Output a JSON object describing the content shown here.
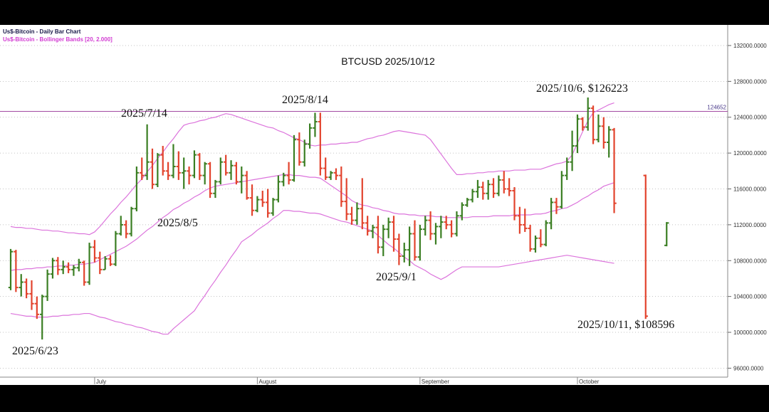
{
  "chart_data": {
    "type": "ohlc",
    "title": "BTCUSD 2025/10/12",
    "legend": [
      "Us$-Bitcoin - Daily Bar Chart",
      "Us$-Bitcoin - Bollinger Bands [20, 2.000]"
    ],
    "legend_colors": [
      "#1a1a4a",
      "#d23cd2"
    ],
    "annotations": [
      "2025/6/23",
      "2025/7/14",
      "2025/8/5",
      "2025/8/14",
      "2025/9/1",
      "2025/10/6, $126223",
      "2025/10/11, $108596"
    ],
    "categories": [
      null,
      null,
      null,
      null,
      null,
      null,
      null,
      null,
      null,
      null,
      null,
      null,
      null,
      null,
      null,
      null,
      "July",
      null,
      null,
      null,
      null,
      null,
      null,
      null,
      null,
      null,
      null,
      null,
      null,
      null,
      null,
      null,
      null,
      null,
      null,
      null,
      null,
      null,
      null,
      null,
      null,
      null,
      null,
      null,
      null,
      null,
      null,
      "August",
      null,
      null,
      null,
      null,
      null,
      null,
      null,
      null,
      null,
      null,
      null,
      null,
      null,
      null,
      null,
      null,
      null,
      null,
      null,
      null,
      null,
      null,
      null,
      null,
      null,
      null,
      null,
      null,
      null,
      null,
      "September",
      null,
      null,
      null,
      null,
      null,
      null,
      null,
      null,
      null,
      null,
      null,
      null,
      null,
      null,
      null,
      null,
      null,
      null,
      null,
      null,
      null,
      null,
      null,
      null,
      null,
      null,
      null,
      null,
      null,
      "October",
      null,
      null,
      null,
      null,
      null,
      null,
      null,
      null,
      null,
      null,
      null,
      null,
      null,
      null,
      null,
      null,
      null
    ],
    "ohlc": {
      "up_color": "#3a7e22",
      "down_color": "#e2432d",
      "open": [
        105000,
        109000,
        105000,
        105600,
        104300,
        103200,
        102000,
        104000,
        106500,
        108000,
        107000,
        107300,
        107000,
        107200,
        107800,
        105600,
        109500,
        108300,
        107000,
        108200,
        107600,
        111000,
        112000,
        111000,
        113800,
        117800,
        117500,
        119000,
        116500,
        119800,
        118000,
        117500,
        118500,
        117800,
        118000,
        117500,
        119800,
        117500,
        118800,
        115500,
        116800,
        119000,
        117800,
        118600,
        116800,
        117500,
        115000,
        113600,
        114800,
        114500,
        113300,
        114800,
        116800,
        117500,
        117000,
        121500,
        119000,
        121000,
        122800,
        123500,
        118300,
        117300,
        117800,
        117500,
        114600,
        113200,
        112500,
        113800,
        112200,
        111300,
        111700,
        109500,
        111500,
        112300,
        110400,
        108500,
        109200,
        111000,
        108400,
        111500,
        112500,
        111000,
        111800,
        112300,
        112000,
        111000,
        113000,
        114200,
        114800,
        115700,
        116200,
        115500,
        116500,
        115500,
        117000,
        116000,
        115800,
        113000,
        112000,
        111600,
        109300,
        110500,
        109800,
        112200,
        114500,
        114000,
        117500,
        119000,
        120800,
        123800,
        122900,
        125000,
        121500,
        123000,
        121200,
        122600,
        null,
        null,
        null,
        null,
        null,
        117500,
        null,
        null,
        null,
        109700
      ],
      "high": [
        109300,
        109200,
        106500,
        106000,
        105800,
        104000,
        104200,
        107000,
        108300,
        108400,
        108000,
        107800,
        107500,
        108200,
        108000,
        110000,
        110300,
        109000,
        108500,
        108600,
        111300,
        113000,
        112500,
        114000,
        118500,
        119500,
        123200,
        120500,
        120000,
        120800,
        119000,
        121000,
        120200,
        119500,
        118500,
        120300,
        120000,
        119000,
        119000,
        117000,
        119500,
        119800,
        119200,
        119000,
        118500,
        118000,
        116500,
        115200,
        115800,
        116000,
        115000,
        117500,
        117800,
        119000,
        122000,
        122300,
        121500,
        123300,
        124500,
        124500,
        119500,
        118000,
        118300,
        118500,
        117200,
        114000,
        114500,
        117200,
        113000,
        112000,
        113000,
        112000,
        112800,
        113000,
        111000,
        110000,
        111800,
        112500,
        112000,
        113000,
        113500,
        112200,
        113000,
        113000,
        112500,
        113500,
        114500,
        115000,
        116000,
        117000,
        116800,
        117000,
        117200,
        117500,
        118000,
        117200,
        116200,
        114000,
        113800,
        112000,
        110800,
        111500,
        112500,
        115000,
        115000,
        118000,
        119500,
        122500,
        124300,
        124000,
        126200,
        125300,
        124300,
        124000,
        123000,
        122800,
        null,
        null,
        null,
        null,
        null,
        117600,
        null,
        null,
        null,
        112300
      ],
      "low": [
        104700,
        104500,
        104000,
        103800,
        102500,
        101500,
        99200,
        103500,
        106000,
        106400,
        106500,
        106600,
        106300,
        106800,
        105200,
        105300,
        107800,
        106500,
        107000,
        107400,
        107400,
        110800,
        110500,
        110700,
        113500,
        117000,
        117000,
        116000,
        116200,
        117500,
        117000,
        117200,
        117000,
        116000,
        116500,
        117200,
        117000,
        116500,
        115000,
        115000,
        116500,
        117500,
        117000,
        116500,
        115500,
        114800,
        113000,
        113400,
        114000,
        112800,
        113000,
        114500,
        116300,
        116500,
        116800,
        118600,
        118500,
        120500,
        121800,
        117500,
        117000,
        117000,
        117000,
        114000,
        112500,
        112000,
        112000,
        111500,
        110800,
        110500,
        108800,
        108500,
        110500,
        109000,
        107500,
        107800,
        107400,
        108000,
        108000,
        110800,
        110300,
        109800,
        110500,
        111500,
        110600,
        110700,
        112500,
        114000,
        114500,
        115000,
        114800,
        114800,
        115000,
        115200,
        115500,
        115200,
        112500,
        111000,
        111200,
        109000,
        108900,
        109500,
        109600,
        111500,
        113200,
        113800,
        117000,
        118000,
        120000,
        122500,
        122500,
        121000,
        121200,
        120500,
        119500,
        113300,
        null,
        null,
        null,
        null,
        null,
        101500,
        null,
        null,
        null,
        109600
      ],
      "close": [
        109000,
        105000,
        105600,
        104300,
        103200,
        102000,
        104000,
        106500,
        108000,
        107000,
        107300,
        107000,
        107200,
        107800,
        105600,
        109500,
        108300,
        107000,
        108200,
        107600,
        111000,
        112000,
        111000,
        113800,
        117800,
        117500,
        119000,
        116500,
        119800,
        118000,
        117500,
        118500,
        117800,
        118000,
        117500,
        119800,
        117500,
        118800,
        115500,
        116800,
        119000,
        117800,
        118600,
        116800,
        117500,
        115000,
        113600,
        114800,
        114500,
        113300,
        114800,
        116800,
        117500,
        117000,
        121500,
        119000,
        121000,
        122800,
        123500,
        118300,
        117300,
        117800,
        117500,
        114600,
        113200,
        112500,
        113800,
        112200,
        111300,
        111700,
        109500,
        111500,
        112300,
        110400,
        108500,
        109200,
        111000,
        108400,
        111500,
        112500,
        111000,
        111800,
        112300,
        112000,
        111000,
        113000,
        114200,
        114800,
        115700,
        116200,
        115500,
        116500,
        115500,
        117000,
        116000,
        115800,
        113000,
        112000,
        111600,
        109300,
        110500,
        109800,
        112200,
        114500,
        114000,
        117500,
        119000,
        120800,
        123800,
        122900,
        125000,
        121500,
        123000,
        121200,
        122600,
        114400,
        null,
        null,
        null,
        null,
        null,
        101800,
        null,
        null,
        null,
        112200
      ]
    },
    "bands": {
      "color": "#dc74dc",
      "upper": [
        111800,
        111700,
        111700,
        111600,
        111600,
        111500,
        111400,
        111400,
        111300,
        111300,
        111200,
        111100,
        111100,
        111000,
        111000,
        110900,
        111200,
        111800,
        112500,
        113200,
        113800,
        114500,
        115100,
        115800,
        116500,
        117100,
        117900,
        118600,
        119400,
        120100,
        120900,
        121600,
        122400,
        123100,
        123300,
        123400,
        123600,
        123700,
        123900,
        124000,
        124200,
        124400,
        124300,
        124100,
        123900,
        123700,
        123500,
        123300,
        123100,
        122900,
        122800,
        122500,
        122300,
        122000,
        121700,
        121500,
        121200,
        120900,
        120800,
        120900,
        120900,
        121000,
        121000,
        121100,
        121100,
        121200,
        121200,
        121400,
        121600,
        121700,
        121900,
        122000,
        122200,
        122400,
        122500,
        122400,
        122300,
        122200,
        122100,
        122000,
        121500,
        120700,
        119900,
        119100,
        118300,
        117600,
        117600,
        117700,
        117700,
        117800,
        117800,
        117900,
        117900,
        118000,
        118000,
        118000,
        118100,
        118100,
        118100,
        118200,
        118200,
        118200,
        118400,
        118600,
        118800,
        118900,
        119100,
        119800,
        121100,
        122400,
        123600,
        124500,
        124800,
        125100,
        125400,
        125600,
        null,
        null,
        null,
        null,
        null,
        null,
        null,
        null,
        null,
        null
      ],
      "middle": [
        106900,
        107000,
        107000,
        107100,
        107100,
        107200,
        107200,
        107300,
        107300,
        107400,
        107400,
        107500,
        107500,
        107600,
        107600,
        107700,
        107800,
        108100,
        108400,
        108700,
        109000,
        109300,
        109600,
        110000,
        110400,
        110900,
        111400,
        111800,
        112300,
        112800,
        113200,
        113700,
        114000,
        114400,
        114700,
        115100,
        115400,
        115800,
        116100,
        116300,
        116400,
        116500,
        116600,
        116700,
        116800,
        116900,
        117000,
        117100,
        117200,
        117300,
        117400,
        117500,
        117600,
        117600,
        117500,
        117500,
        117400,
        117300,
        117300,
        117200,
        116800,
        116400,
        116000,
        115600,
        115200,
        114700,
        114400,
        114200,
        114100,
        113900,
        113800,
        113600,
        113500,
        113300,
        113200,
        113200,
        113100,
        113100,
        113000,
        113000,
        113000,
        112900,
        112900,
        112800,
        112800,
        112800,
        112800,
        112800,
        112900,
        112900,
        112900,
        112900,
        113000,
        113000,
        113000,
        113000,
        113100,
        113100,
        113100,
        113100,
        113200,
        113200,
        113300,
        113500,
        113600,
        113800,
        113900,
        114200,
        114500,
        114900,
        115200,
        115600,
        115900,
        116300,
        116500,
        116700,
        null,
        null,
        null,
        null,
        null,
        null,
        null,
        null,
        null,
        null
      ],
      "lower": [
        102100,
        102000,
        101900,
        101800,
        101800,
        101700,
        101700,
        101700,
        101800,
        101800,
        101900,
        101900,
        102000,
        102000,
        102100,
        102100,
        101900,
        101700,
        101600,
        101400,
        101200,
        101100,
        100900,
        100800,
        100600,
        100500,
        100300,
        100100,
        100000,
        99800,
        99800,
        100400,
        100900,
        101400,
        101900,
        102400,
        103300,
        104100,
        105000,
        105800,
        106700,
        107500,
        108400,
        109200,
        110100,
        110500,
        110900,
        111400,
        111800,
        112200,
        112700,
        113100,
        113600,
        113600,
        113500,
        113500,
        113400,
        113300,
        113300,
        113200,
        113000,
        112800,
        112600,
        112400,
        112300,
        112100,
        111900,
        111700,
        111500,
        111300,
        110800,
        110300,
        109800,
        109400,
        108900,
        108400,
        108000,
        107500,
        107200,
        106900,
        106500,
        106200,
        105900,
        106200,
        106600,
        107000,
        107300,
        107300,
        107300,
        107300,
        107300,
        107300,
        107300,
        107300,
        107400,
        107500,
        107600,
        107700,
        107800,
        107900,
        108000,
        108100,
        108200,
        108300,
        108400,
        108500,
        108600,
        108500,
        108400,
        108300,
        108200,
        108100,
        108000,
        107900,
        107800,
        107700,
        null,
        null,
        null,
        null,
        null,
        null,
        null,
        null,
        null,
        null
      ]
    },
    "hline": {
      "value": 124652,
      "color": "#a24aa2"
    },
    "ylim": [
      95000,
      134300
    ],
    "yticks": [
      {
        "value": 96000,
        "label": "96000.0000"
      },
      {
        "value": 100000,
        "label": "100000.0000"
      },
      {
        "value": 104000,
        "label": "104000.0000"
      },
      {
        "value": 108000,
        "label": "108000.0000"
      },
      {
        "value": 112000,
        "label": "112000.0000"
      },
      {
        "value": 116000,
        "label": "116000.0000"
      },
      {
        "value": 120000,
        "label": "120000.0000"
      },
      {
        "value": 124000,
        "label": "124000.0000"
      },
      {
        "value": 128000,
        "label": "128000.0000"
      },
      {
        "value": 132000,
        "label": "132000.0000"
      }
    ],
    "grid": true
  }
}
